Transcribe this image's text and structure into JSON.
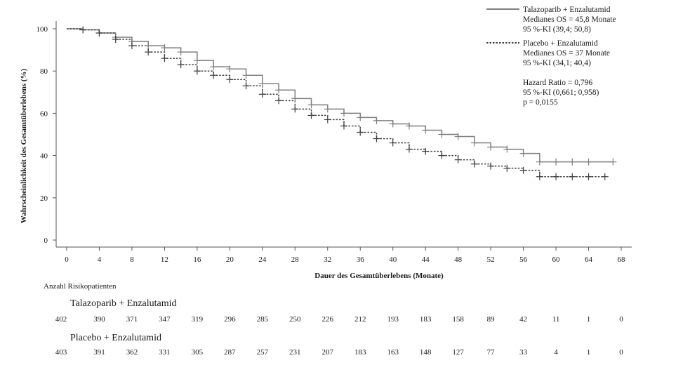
{
  "chart_data": {
    "type": "line",
    "xlabel": "Dauer des Gesamtüberlebens (Monate)",
    "ylabel": "Wahrscheinlichkeit des Gesamtüberlebens (%)",
    "xlim": [
      0,
      68
    ],
    "ylim": [
      0,
      100
    ],
    "xticks": [
      0,
      4,
      8,
      12,
      16,
      20,
      24,
      28,
      32,
      36,
      40,
      44,
      48,
      52,
      56,
      60,
      64,
      68
    ],
    "yticks": [
      0,
      20,
      40,
      60,
      80,
      100
    ],
    "grid": false,
    "legend_position": "top-right",
    "series": [
      {
        "name": "Talazoparib + Enzalutamid",
        "style": "solid",
        "color": "#7f7f7f",
        "legend_lines": [
          "Talazoparib + Enzalutamid",
          "Medianes OS = 45,8 Monate",
          "95 %-KI (39,4; 50,8)"
        ],
        "x": [
          0,
          2,
          4,
          6,
          8,
          10,
          12,
          14,
          16,
          18,
          20,
          22,
          24,
          26,
          28,
          30,
          32,
          34,
          36,
          38,
          40,
          42,
          44,
          46,
          48,
          50,
          52,
          54,
          56,
          58,
          60,
          62,
          64,
          67
        ],
        "y": [
          100,
          99.5,
          98,
          96,
          94,
          92,
          91,
          89,
          85,
          82,
          81,
          78,
          74,
          71,
          67,
          64,
          62,
          60,
          58,
          56.5,
          55,
          54,
          52,
          50,
          49,
          46,
          44,
          43,
          41,
          37,
          37,
          37,
          37,
          37
        ]
      },
      {
        "name": "Placebo + Enzalutamid",
        "style": "dashed",
        "color": "#3f3f3f",
        "legend_lines": [
          "Placebo + Enzalutamid",
          "Medianes OS = 37 Monate",
          "95 %-KI (34,1; 40,4)"
        ],
        "x": [
          0,
          2,
          4,
          6,
          8,
          10,
          12,
          14,
          16,
          18,
          20,
          22,
          24,
          26,
          28,
          30,
          32,
          34,
          36,
          38,
          40,
          42,
          44,
          46,
          48,
          50,
          52,
          54,
          56,
          58,
          60,
          62,
          64,
          66
        ],
        "y": [
          100,
          99.5,
          98,
          95,
          92,
          89,
          86,
          83,
          80,
          78,
          76,
          73,
          69,
          66,
          62,
          59,
          57,
          54,
          51,
          48,
          46,
          43,
          42,
          40,
          38,
          36,
          35,
          34,
          33,
          30,
          30,
          30,
          30,
          30
        ]
      }
    ],
    "annotations": [
      "Hazard Ratio = 0,796",
      "95 %-KI (0,661; 0,958)",
      "p = 0,0155"
    ],
    "risk_table": {
      "title": "Anzahl Risikopatienten",
      "groups": [
        {
          "name": "Talazoparib + Enzalutamid",
          "counts": [
            402,
            390,
            371,
            347,
            319,
            296,
            285,
            250,
            226,
            212,
            193,
            183,
            158,
            89,
            42,
            11,
            1,
            0
          ]
        },
        {
          "name": "Placebo + Enzalutamid",
          "counts": [
            403,
            391,
            362,
            331,
            305,
            287,
            257,
            231,
            207,
            183,
            163,
            148,
            127,
            77,
            33,
            4,
            1,
            0
          ]
        }
      ]
    }
  }
}
